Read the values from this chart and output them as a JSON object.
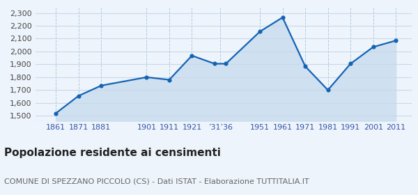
{
  "years": [
    1861,
    1871,
    1881,
    1901,
    1911,
    1921,
    1931,
    1936,
    1951,
    1961,
    1971,
    1981,
    1991,
    2001,
    2011
  ],
  "population": [
    1520,
    1655,
    1735,
    1800,
    1780,
    1968,
    1905,
    1905,
    2155,
    2265,
    1885,
    1700,
    1905,
    2035,
    2085
  ],
  "xtick_positions": [
    1861,
    1871,
    1881,
    1901,
    1911,
    1921,
    1933.5,
    1951,
    1961,
    1971,
    1981,
    1991,
    2001,
    2011
  ],
  "xtick_labels": [
    "1861",
    "1871",
    "1881",
    "1901",
    "1911",
    "1921",
    "’31’36",
    "1951",
    "1961",
    "1971",
    "1981",
    "1991",
    "2001",
    "2011"
  ],
  "yticks": [
    1500,
    1600,
    1700,
    1800,
    1900,
    2000,
    2100,
    2200,
    2300
  ],
  "ylim": [
    1460,
    2340
  ],
  "xlim": [
    1852,
    2018
  ],
  "line_color": "#1464b4",
  "fill_color": "#cfe0f0",
  "marker_color": "#1464b4",
  "bg_color": "#eef4fb",
  "grid_color_h": "#c8d8e8",
  "grid_color_v": "#b0c8e0",
  "title": "Popolazione residente ai censimenti",
  "subtitle": "COMUNE DI SPEZZANO PICCOLO (CS) - Dati ISTAT - Elaborazione TUTTITALIA.IT",
  "title_fontsize": 11,
  "subtitle_fontsize": 8,
  "tick_fontsize": 8,
  "tick_color": "#3355aa"
}
